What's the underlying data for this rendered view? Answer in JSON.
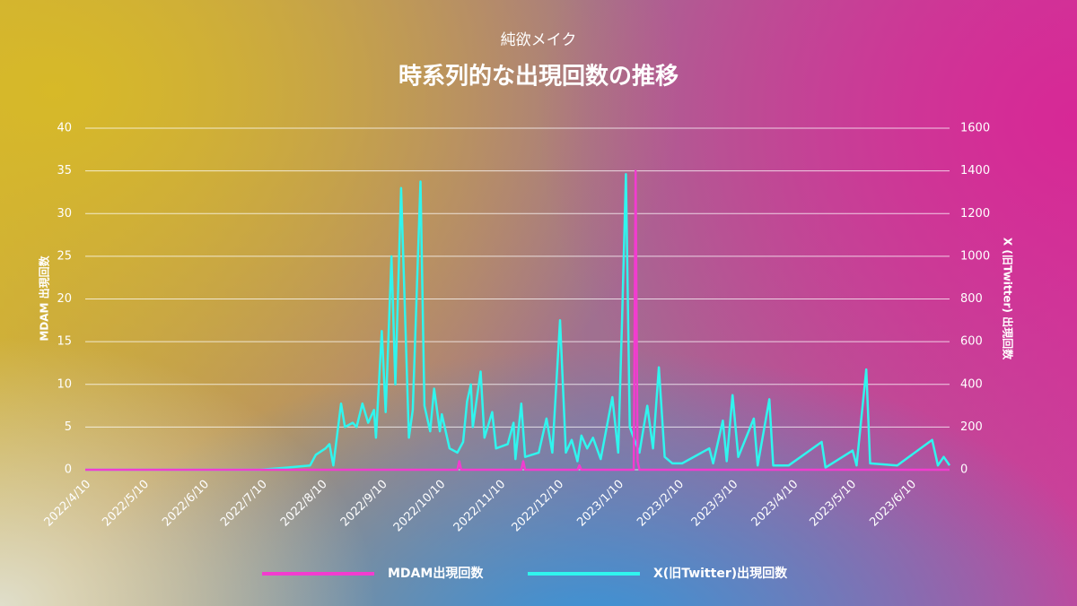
{
  "chart_data": {
    "type": "line",
    "subtitle": "純欲メイク",
    "title": "時系列的な出現回数の推移",
    "y_label": "MDAM 出現回数",
    "y2_label": "X (旧Twitter) 出現回数",
    "xlim": [
      "2022/4/10",
      "2023/6/30"
    ],
    "xticks": [
      "2022/4/10",
      "2022/5/10",
      "2022/6/10",
      "2022/7/10",
      "2022/8/10",
      "2022/9/10",
      "2022/10/10",
      "2022/11/10",
      "2022/12/10",
      "2023/1/10",
      "2023/2/10",
      "2023/3/10",
      "2023/4/10",
      "2023/5/10",
      "2023/6/10"
    ],
    "ylim": [
      0,
      40
    ],
    "yticks": [
      0,
      5,
      10,
      15,
      20,
      25,
      30,
      35,
      40
    ],
    "y2lim": [
      0,
      1600
    ],
    "y2ticks": [
      0,
      200,
      400,
      600,
      800,
      1000,
      1200,
      1400,
      1600
    ],
    "grid": true,
    "series": [
      {
        "name": "MDAM出現回数",
        "color": "#f23ccf",
        "axis": "y",
        "x": [
          "2022/4/10",
          "2022/10/19",
          "2022/10/20",
          "2022/10/21",
          "2022/11/21",
          "2022/11/22",
          "2022/11/23",
          "2022/12/20",
          "2022/12/21",
          "2022/12/22",
          "2023/1/18",
          "2023/1/19",
          "2023/1/20",
          "2023/1/21",
          "2023/6/30"
        ],
        "values": [
          0,
          0,
          1,
          0,
          0,
          1,
          0,
          0,
          0.5,
          0,
          0,
          35,
          1,
          0,
          0
        ]
      },
      {
        "name": "X(旧Twitter)出現回数",
        "color": "#30f5ee",
        "axis": "y2",
        "x": [
          "2022/4/10",
          "2022/7/9",
          "2022/7/23",
          "2022/8/4",
          "2022/8/7",
          "2022/8/12",
          "2022/8/14",
          "2022/8/16",
          "2022/8/20",
          "2022/8/22",
          "2022/8/26",
          "2022/8/28",
          "2022/8/31",
          "2022/9/3",
          "2022/9/6",
          "2022/9/7",
          "2022/9/10",
          "2022/9/12",
          "2022/9/15",
          "2022/9/17",
          "2022/9/20",
          "2022/9/24",
          "2022/9/26",
          "2022/9/30",
          "2022/10/2",
          "2022/10/5",
          "2022/10/7",
          "2022/10/10",
          "2022/10/11",
          "2022/10/15",
          "2022/10/19",
          "2022/10/22",
          "2022/10/24",
          "2022/10/26",
          "2022/10/27",
          "2022/10/31",
          "2022/11/2",
          "2022/11/6",
          "2022/11/8",
          "2022/11/14",
          "2022/11/17",
          "2022/11/18",
          "2022/11/21",
          "2022/11/23",
          "2022/11/30",
          "2022/12/4",
          "2022/12/7",
          "2022/12/11",
          "2022/12/14",
          "2022/12/17",
          "2022/12/20",
          "2022/12/22",
          "2022/12/25",
          "2022/12/28",
          "2023/1/1",
          "2023/1/7",
          "2023/1/10",
          "2023/1/12",
          "2023/1/14",
          "2023/1/16",
          "2023/1/18",
          "2023/1/21",
          "2023/1/25",
          "2023/1/28",
          "2023/1/31",
          "2023/2/3",
          "2023/2/7",
          "2023/2/12",
          "2023/2/26",
          "2023/2/28",
          "2023/3/5",
          "2023/3/7",
          "2023/3/10",
          "2023/3/13",
          "2023/3/21",
          "2023/3/23",
          "2023/3/29",
          "2023/3/31",
          "2023/4/8",
          "2023/4/25",
          "2023/4/27",
          "2023/5/11",
          "2023/5/13",
          "2023/5/18",
          "2023/5/20",
          "2023/6/3",
          "2023/6/21",
          "2023/6/24",
          "2023/6/27",
          "2023/6/30"
        ],
        "values": [
          0,
          0,
          10,
          20,
          70,
          100,
          120,
          20,
          310,
          200,
          220,
          200,
          310,
          220,
          280,
          150,
          650,
          270,
          1000,
          400,
          1320,
          150,
          280,
          1350,
          300,
          180,
          380,
          180,
          260,
          100,
          80,
          130,
          320,
          400,
          200,
          460,
          150,
          270,
          100,
          120,
          220,
          50,
          310,
          60,
          80,
          240,
          80,
          700,
          80,
          140,
          40,
          160,
          100,
          150,
          50,
          340,
          80,
          700,
          1385,
          200,
          150,
          80,
          300,
          100,
          480,
          60,
          30,
          30,
          100,
          30,
          230,
          40,
          350,
          60,
          240,
          20,
          330,
          20,
          20,
          130,
          10,
          90,
          20,
          470,
          30,
          20,
          140,
          20,
          60,
          20
        ]
      }
    ]
  }
}
